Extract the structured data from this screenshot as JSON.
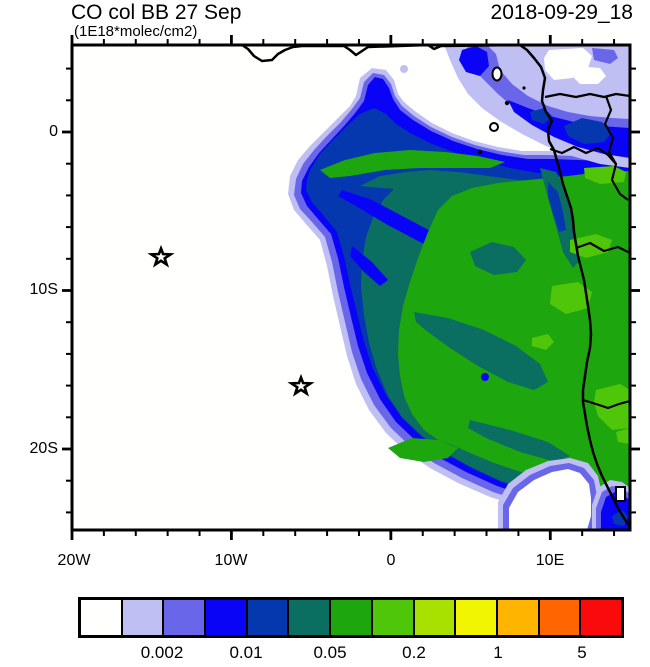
{
  "header": {
    "title_left": "CO col BB 27 Sep",
    "subtitle": "(1E18*molec/cm2)",
    "title_right": "2018-09-29_18"
  },
  "axes": {
    "lat_tick_labels": [
      "0",
      "10S",
      "20S"
    ],
    "lon_tick_labels": [
      "20W",
      "10W",
      "0",
      "10E"
    ]
  },
  "colorbar": {
    "labels": [
      "0.002",
      "0.01",
      "0.05",
      "0.2",
      "1",
      "5"
    ],
    "colors": [
      "#FFFFFE",
      "#BFBFF4",
      "#6A66EA",
      "#0904F6",
      "#0538AE",
      "#0A6E60",
      "#1EA60E",
      "#50C60A",
      "#A8E000",
      "#F2F500",
      "#FFB400",
      "#FF6600",
      "#FA0A0A"
    ]
  },
  "chart_data": {
    "type": "heatmap",
    "title": "CO col BB 27 Sep",
    "units_label": "(1E18*molec/cm2)",
    "timestamp": "2018-09-29_18",
    "projection": "lat-lon map, SE Atlantic / western equatorial Africa",
    "lon_range_deg": [
      -20,
      15
    ],
    "lat_range_deg": [
      -25.1,
      5.5
    ],
    "lon_tick_labels": [
      "20W",
      "10W",
      "0",
      "10E"
    ],
    "lat_tick_labels": [
      "0",
      "10S",
      "20S"
    ],
    "tick_interval_minor_deg": 2,
    "tick_interval_major_deg": 10,
    "colorbar_boundary_labels": [
      0.002,
      0.01,
      0.05,
      0.2,
      1,
      5
    ],
    "palette_hex": [
      "#FFFFFE",
      "#BFBFF4",
      "#6A66EA",
      "#0904F6",
      "#0538AE",
      "#0A6E60",
      "#1EA60E",
      "#50C60A",
      "#A8E000",
      "#F2F500",
      "#FFB400",
      "#FF6600",
      "#FA0A0A"
    ],
    "legend_position": "bottom",
    "grid": false,
    "markers": {
      "star_markers_lonlat": [
        [
          -14.3,
          -7.9
        ],
        [
          -5.7,
          -16.0
        ]
      ],
      "station_box_lonlat": [
        [
          14.3,
          -22.8
        ]
      ]
    },
    "features": {
      "coastline": "West African coast from Gulf of Guinea (~5N) south to ~25S, exiting the SE map corner",
      "islands": [
        "Bioko",
        "Principe",
        "Sao Tome",
        "Annobon"
      ],
      "plume": "Biomass-burning CO plume over the SE Atlantic: values 0.002-0.01 on the W/N fringe (~7W), 0.01-0.05 band inside, broad 0.05-0.2 (teal/green) core from ~2W to the African coast between ~2S and 23S; coastal equatorial Africa shows a 0.005-0.02 (blue) maximum band near 0-2N and green 0.05-0.2 values inland with patches above 0.2"
    }
  }
}
